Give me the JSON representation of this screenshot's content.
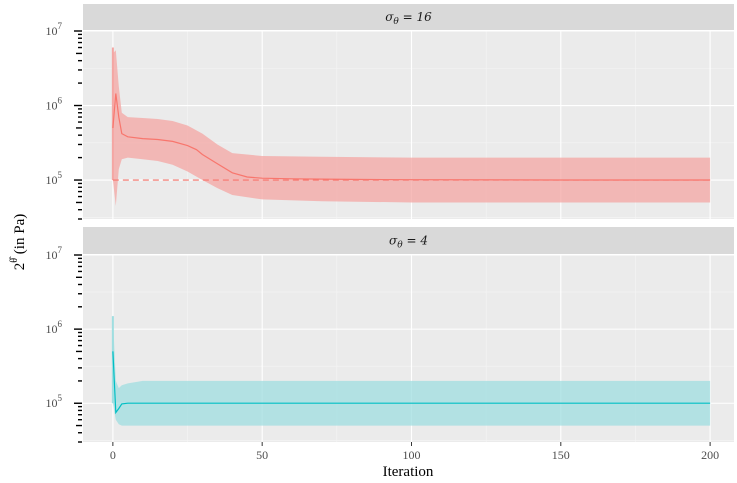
{
  "chart_data": {
    "type": "line",
    "xlabel": "Iteration",
    "ylabel": "2^θ̂ (in Pa)",
    "ylabel_base": "2",
    "ylabel_exp": "θ̂",
    "ylabel_rest": " (in Pa)",
    "y_scale": "log10",
    "ylim": [
      30000,
      10000000
    ],
    "xlim": [
      -10,
      208
    ],
    "x_ticks": [
      0,
      50,
      100,
      150,
      200
    ],
    "x_tick_labels": [
      "0",
      "50",
      "100",
      "150",
      "200"
    ],
    "y_ticks": [
      100000,
      1000000,
      10000000
    ],
    "y_tick_labels": [
      {
        "base": "10",
        "exp": "5"
      },
      {
        "base": "10",
        "exp": "6"
      },
      {
        "base": "10",
        "exp": "7"
      }
    ],
    "grid": true,
    "facets": [
      {
        "strip": "σθ = 16",
        "strip_main": "σ",
        "strip_sub": "θ",
        "strip_rest": " = 16",
        "color": "#F8766D",
        "band_color": "#F4A6A3",
        "reference_line": 100000,
        "band_x": [
          0,
          1,
          2,
          3,
          5,
          10,
          15,
          20,
          25,
          30,
          35,
          40,
          50,
          70,
          100,
          150,
          200
        ],
        "band_lower": [
          100000,
          45000,
          140000,
          190000,
          200000,
          190000,
          180000,
          160000,
          130000,
          100000,
          78000,
          63000,
          55000,
          52000,
          50000,
          50000,
          50000
        ],
        "band_upper": [
          5000000,
          5500000,
          1800000,
          800000,
          700000,
          680000,
          660000,
          620000,
          540000,
          420000,
          300000,
          230000,
          210000,
          205000,
          200000,
          200000,
          200000
        ],
        "spike_upper": 6000000,
        "x": [
          0,
          1,
          2,
          3,
          5,
          10,
          15,
          20,
          25,
          28,
          30,
          35,
          40,
          45,
          50,
          60,
          70,
          80,
          100,
          150,
          200
        ],
        "y": [
          500000,
          1450000,
          700000,
          420000,
          380000,
          360000,
          350000,
          330000,
          290000,
          255000,
          220000,
          165000,
          125000,
          110000,
          106000,
          104000,
          103000,
          102000,
          101000,
          100000,
          100000
        ]
      },
      {
        "strip": "σθ = 4",
        "strip_main": "σ",
        "strip_sub": "θ",
        "strip_rest": " = 4",
        "color": "#00BFC4",
        "band_color": "#9FDEE0",
        "reference_line": null,
        "band_x": [
          0,
          1,
          2,
          3,
          5,
          10,
          200
        ],
        "band_lower": [
          100000,
          60000,
          52000,
          50000,
          50000,
          50000,
          50000
        ],
        "band_upper": [
          1500000,
          200000,
          160000,
          175000,
          185000,
          200000,
          200000
        ],
        "spike_upper": 1500000,
        "x": [
          0,
          1,
          2,
          3,
          5,
          10,
          200
        ],
        "y": [
          500000,
          75000,
          85000,
          98000,
          100000,
          100000,
          100000
        ]
      }
    ]
  }
}
